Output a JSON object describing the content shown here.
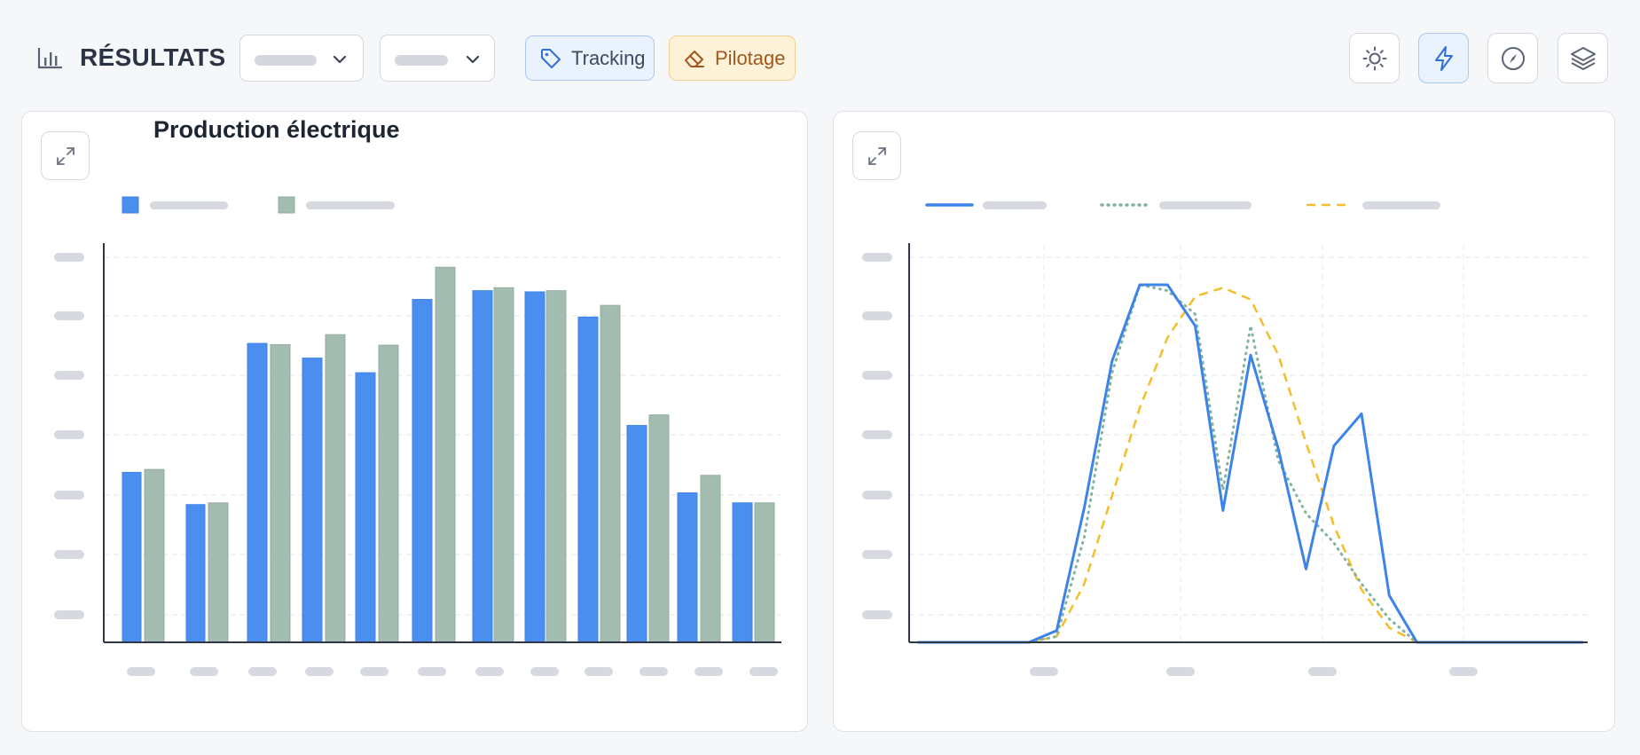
{
  "header": {
    "title": "RÉSULTATS",
    "chips": {
      "tracking": "Tracking",
      "pilotage": "Pilotage"
    }
  },
  "icons": {
    "results": "bar-chart-icon",
    "tracking": "tag-icon",
    "pilotage": "eraser-icon",
    "sun": "sun-icon",
    "lightning": "lightning-icon",
    "compass": "compass-icon",
    "layers": "layers-icon",
    "expand": "expand-icon",
    "chevron": "chevron-down-icon"
  },
  "colors": {
    "accent_blue": "#4a8ff0",
    "sage_green": "#a3bcb0",
    "dashed_yellow": "#f3be2a",
    "dotted_green": "#82b39e"
  },
  "chart_data": [
    {
      "type": "bar",
      "title": "Production électrique",
      "categories": [
        "",
        "",
        "",
        "",
        "",
        "",
        "",
        "",
        "",
        "",
        "",
        ""
      ],
      "series": [
        {
          "values": [
            2.9,
            2.35,
            5.1,
            4.85,
            4.6,
            5.85,
            6.0,
            5.98,
            5.55,
            3.7,
            2.55,
            2.38
          ]
        },
        {
          "values": [
            2.95,
            2.38,
            5.08,
            5.25,
            5.07,
            6.4,
            6.05,
            6.0,
            5.75,
            3.88,
            2.85,
            2.38
          ]
        }
      ],
      "ylim": [
        0,
        6.6
      ],
      "colors": [
        "#4a8ff0",
        "#a3bcb0"
      ],
      "grid": true,
      "legend": "top-left"
    },
    {
      "type": "line",
      "x": [
        0,
        1,
        2,
        3,
        4,
        5,
        6,
        7,
        8,
        9,
        10,
        11,
        12,
        13,
        14,
        15,
        16,
        17,
        18,
        19,
        20,
        21,
        22,
        23,
        24
      ],
      "series": [
        {
          "style": "solid",
          "values": [
            0,
            0,
            0,
            0,
            0,
            0.2,
            2.3,
            4.8,
            6.1,
            6.1,
            5.4,
            2.25,
            4.9,
            3.3,
            1.25,
            3.35,
            3.9,
            0.8,
            0,
            0,
            0,
            0,
            0,
            0,
            0
          ]
        },
        {
          "style": "dotted",
          "values": [
            0,
            0,
            0,
            0,
            0,
            0.1,
            1.8,
            4.6,
            6.1,
            6.0,
            5.6,
            2.6,
            5.4,
            3.1,
            2.2,
            1.7,
            1.0,
            0.4,
            0,
            0,
            0,
            0,
            0,
            0,
            0
          ]
        },
        {
          "style": "dashed",
          "values": [
            0,
            0,
            0,
            0,
            0,
            0.1,
            1.0,
            2.5,
            4.0,
            5.2,
            5.9,
            6.05,
            5.85,
            4.9,
            3.4,
            2.0,
            0.9,
            0.25,
            0,
            0,
            0,
            0,
            0,
            0,
            0
          ]
        }
      ],
      "ylim": [
        0,
        6.6
      ],
      "colors": [
        "#3d83e8",
        "#82b39e",
        "#f3be2a"
      ],
      "grid": true,
      "legend": "top-left"
    }
  ]
}
